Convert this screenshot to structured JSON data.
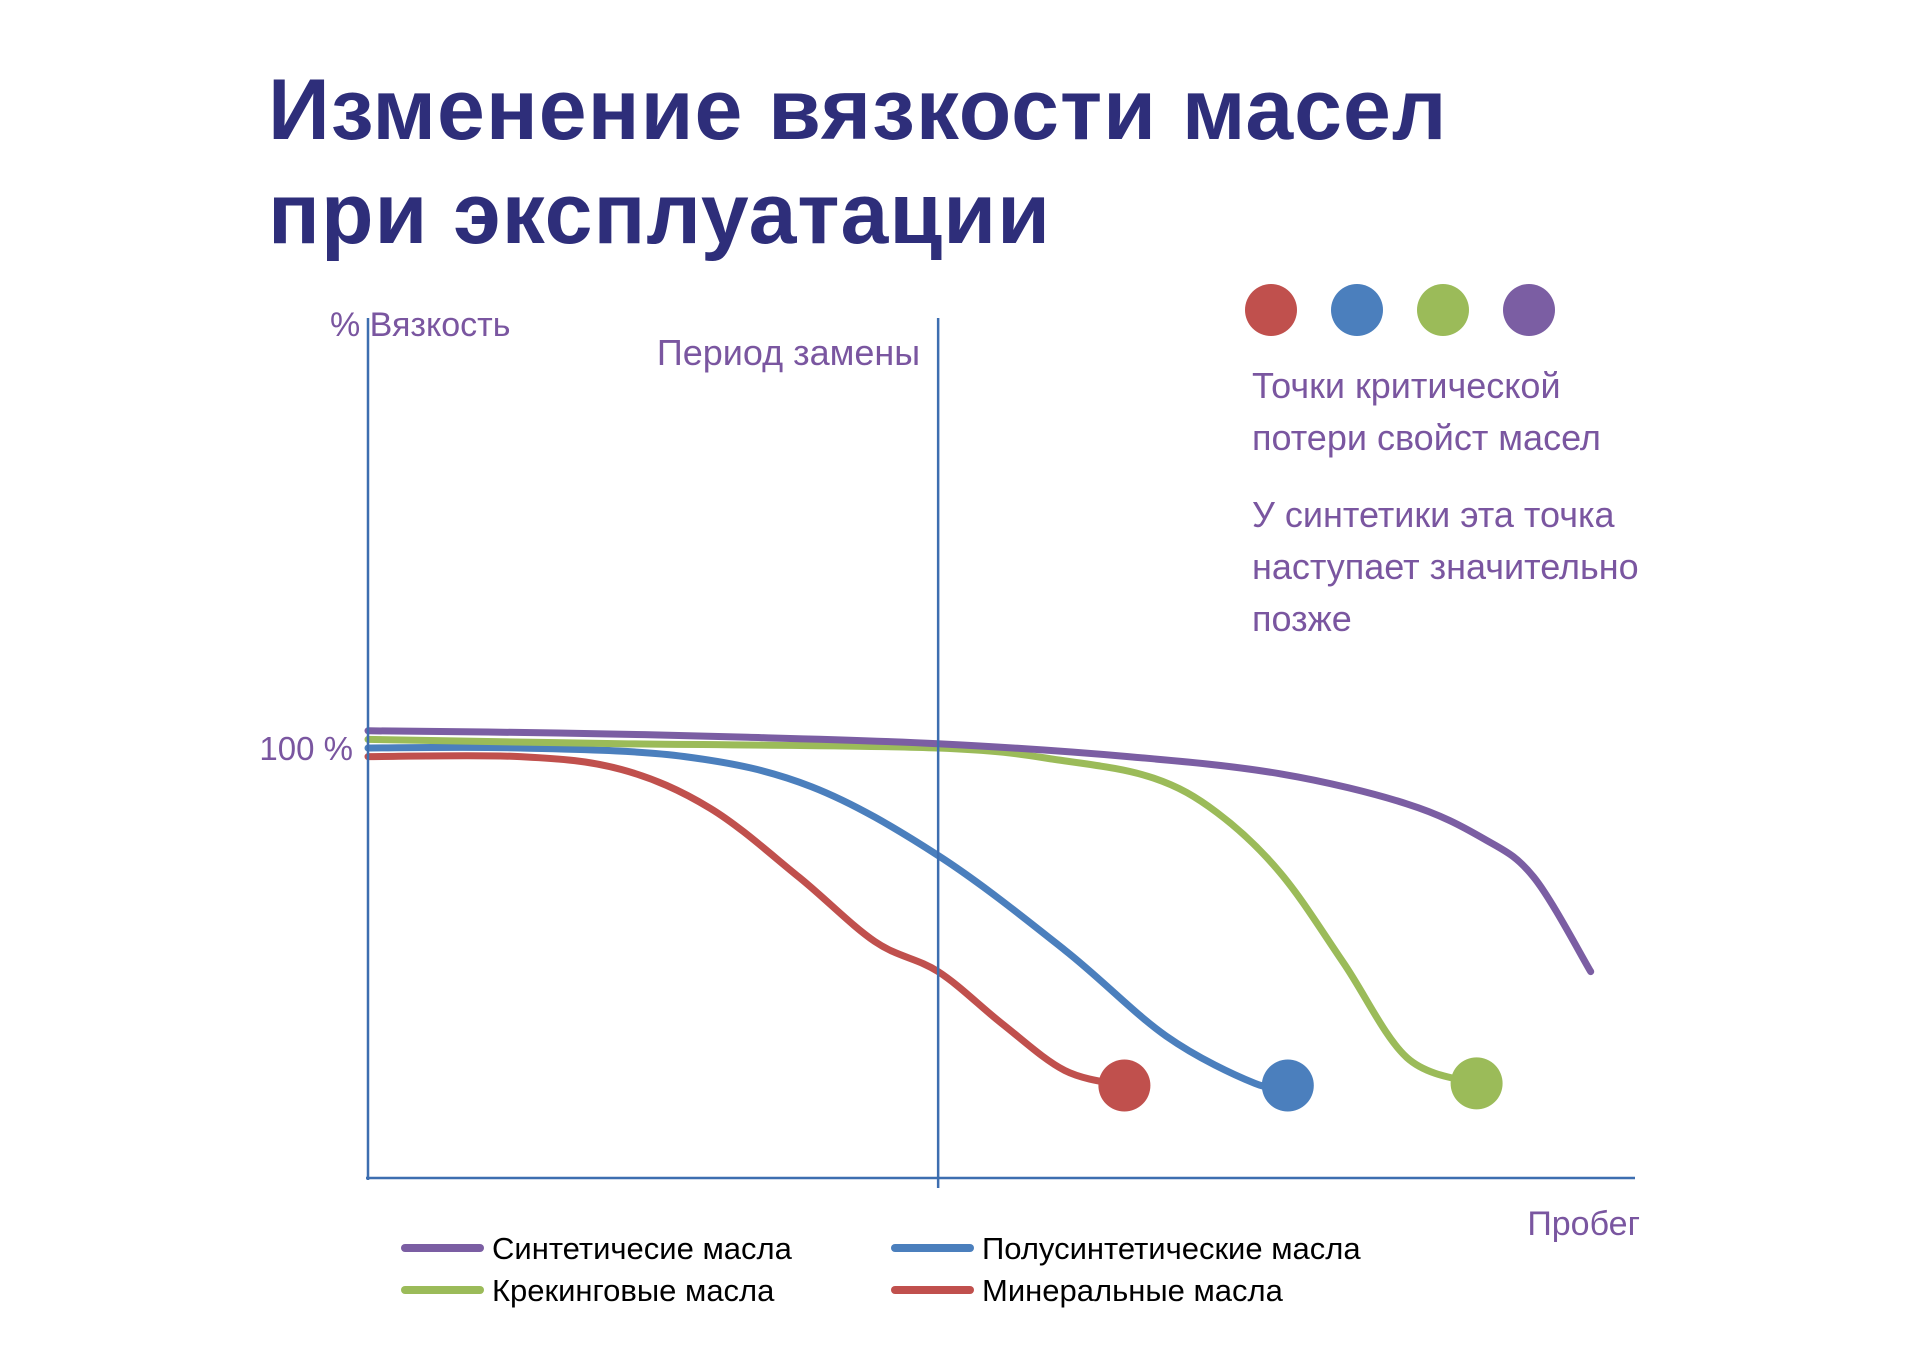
{
  "title": {
    "line1": "Изменение вязкости масел",
    "line2": "при эксплуатации"
  },
  "colors": {
    "title": "#2e2e7a",
    "label": "#7a56a0",
    "axis": "#3d6eb0",
    "synthetic": "#7b5ea3",
    "semi_synthetic": "#4b7fbd",
    "cracking": "#9bbb59",
    "mineral": "#c0504d"
  },
  "notes": {
    "critical_line1": "Точки критической",
    "critical_line2": "потери свойст масел",
    "synthetic_line1": "У синтетики эта точка",
    "synthetic_line2": "наступает значительно",
    "synthetic_line3": "позже"
  },
  "chart_data": {
    "type": "line",
    "ylabel": "% Вязкость",
    "xlabel": "Пробег",
    "ytick_label": "100 %",
    "ytick_value": 100,
    "xlim": [
      0,
      100
    ],
    "ylim": [
      0,
      200
    ],
    "annotation": {
      "label": "Период замены",
      "x": 45
    },
    "series": [
      {
        "name": "Синтетичесие масла",
        "color": "#7b5ea3",
        "critical_point": false,
        "points": [
          [
            0,
            104
          ],
          [
            15,
            103.5
          ],
          [
            30,
            102.5
          ],
          [
            45,
            101
          ],
          [
            60,
            98
          ],
          [
            72,
            94
          ],
          [
            82,
            87
          ],
          [
            88,
            79
          ],
          [
            92,
            70
          ],
          [
            96.5,
            48
          ]
        ]
      },
      {
        "name": "Полусинтетические масла",
        "color": "#4b7fbd",
        "critical_point": true,
        "points": [
          [
            0,
            100
          ],
          [
            12,
            100
          ],
          [
            25,
            98
          ],
          [
            35,
            91
          ],
          [
            45,
            75
          ],
          [
            55,
            53
          ],
          [
            63,
            33
          ],
          [
            70,
            22
          ],
          [
            72.6,
            21.5
          ]
        ]
      },
      {
        "name": "Крекинговые масла",
        "color": "#9bbb59",
        "critical_point": true,
        "points": [
          [
            0,
            102
          ],
          [
            20,
            101
          ],
          [
            45,
            100
          ],
          [
            55,
            97
          ],
          [
            62,
            93
          ],
          [
            67,
            85
          ],
          [
            72,
            71
          ],
          [
            77,
            50
          ],
          [
            82,
            28
          ],
          [
            87.5,
            22
          ]
        ]
      },
      {
        "name": "Минеральные масла",
        "color": "#c0504d",
        "critical_point": true,
        "points": [
          [
            0,
            98
          ],
          [
            12,
            98
          ],
          [
            20,
            95
          ],
          [
            27,
            86
          ],
          [
            34,
            70
          ],
          [
            40,
            55
          ],
          [
            45,
            48
          ],
          [
            50,
            36
          ],
          [
            55,
            25
          ],
          [
            59.7,
            21.5
          ]
        ]
      }
    ],
    "legend_order": [
      0,
      1,
      2,
      3
    ],
    "legend_position": "bottom",
    "grid": false
  }
}
